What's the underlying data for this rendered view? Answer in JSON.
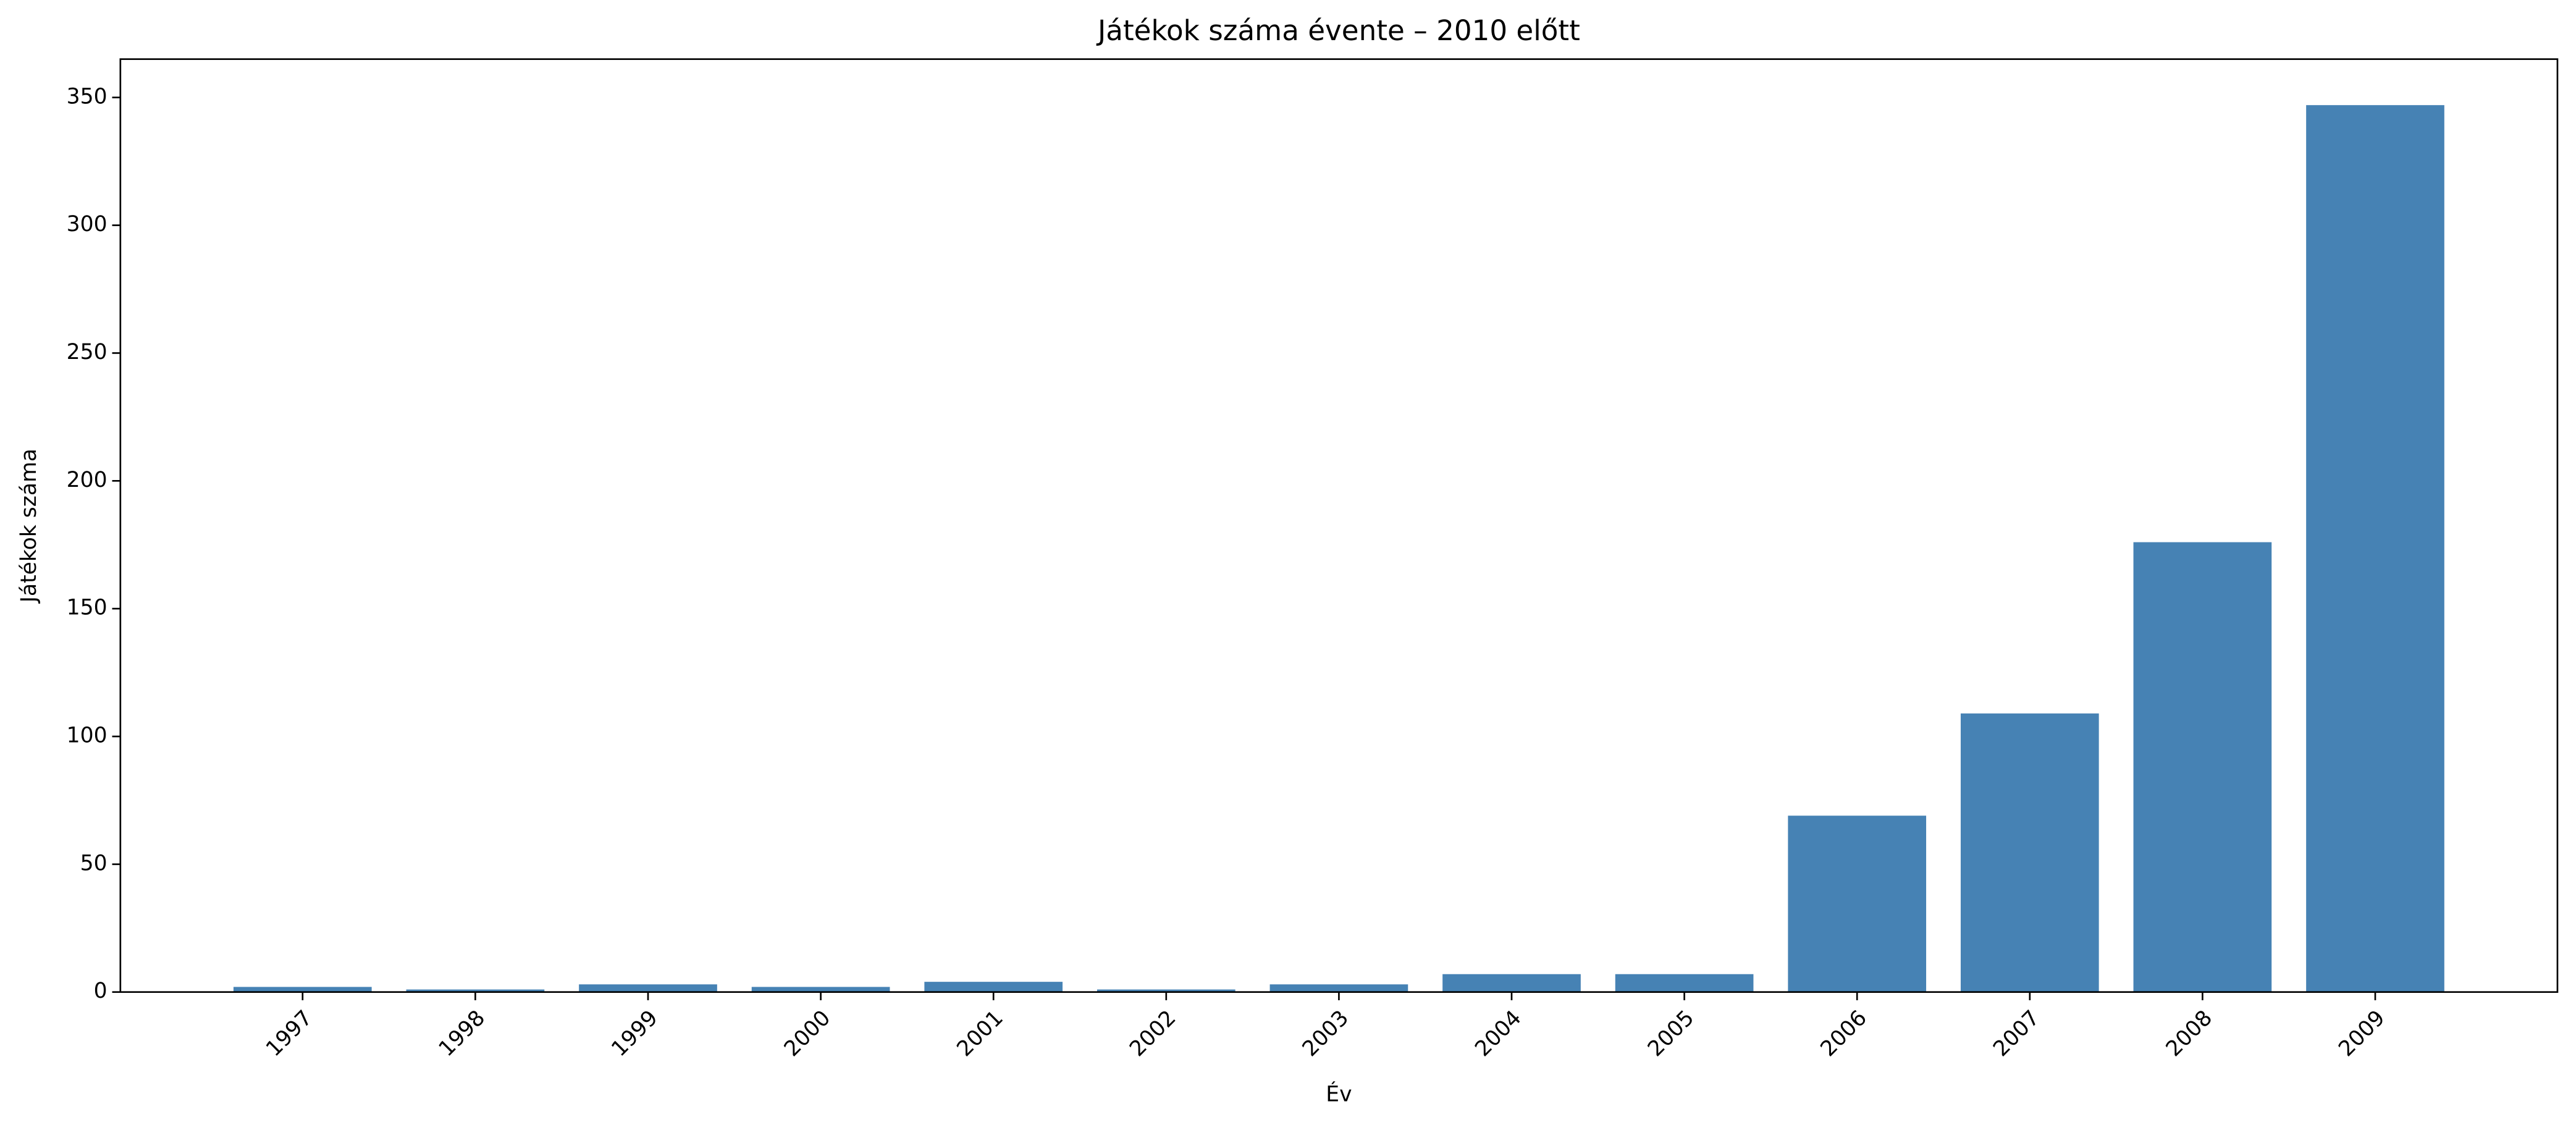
{
  "chart_data": {
    "type": "bar",
    "title": "Játékok száma évente – 2010 előtt",
    "x_label": "Év",
    "y_label": "Játékok száma",
    "categories": [
      "1997",
      "1998",
      "1999",
      "2000",
      "2001",
      "2002",
      "2003",
      "2004",
      "2005",
      "2006",
      "2007",
      "2008",
      "2009"
    ],
    "values": [
      2,
      1,
      3,
      2,
      4,
      1,
      3,
      7,
      7,
      69,
      109,
      176,
      347
    ],
    "color": "#4682b4",
    "ylim": [
      0,
      365
    ],
    "yticks": [
      0,
      50,
      100,
      150,
      200,
      250,
      300,
      350
    ],
    "grid": false
  }
}
